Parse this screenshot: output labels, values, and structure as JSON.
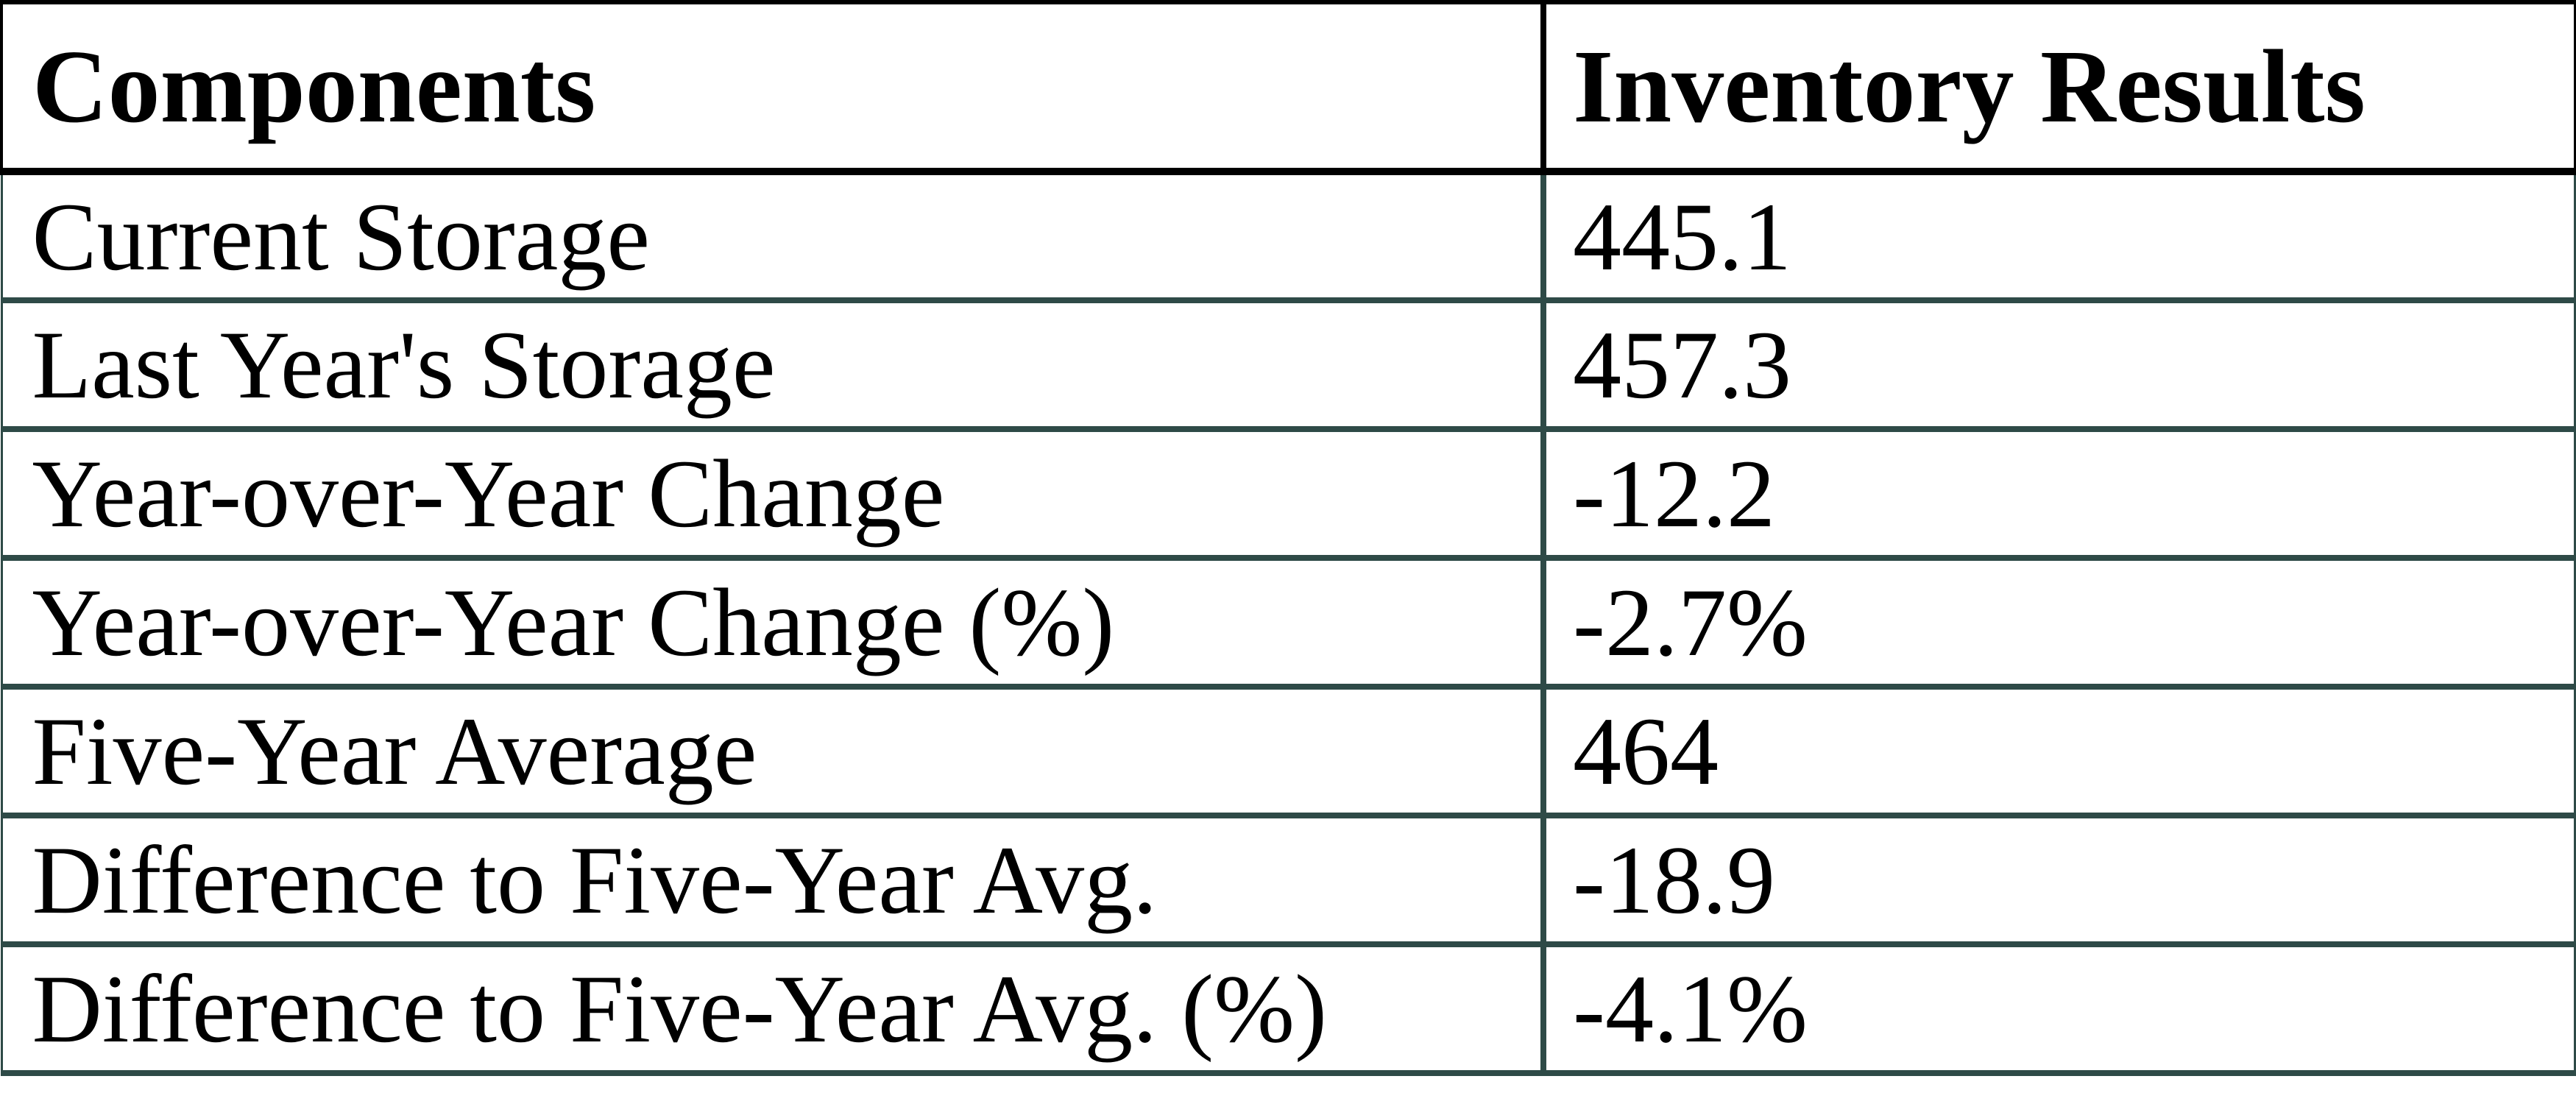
{
  "chart_data": {
    "type": "table",
    "title": "",
    "columns": [
      "Components",
      "Inventory Results"
    ],
    "rows": [
      {
        "component": "Current Storage",
        "result": "445.1"
      },
      {
        "component": "Last Year's Storage",
        "result": "457.3"
      },
      {
        "component": "Year-over-Year Change",
        "result": "-12.2"
      },
      {
        "component": "Year-over-Year Change (%)",
        "result": "-2.7%"
      },
      {
        "component": "Five-Year Average",
        "result": "464"
      },
      {
        "component": "Difference to Five-Year Avg.",
        "result": "-18.9"
      },
      {
        "component": "Difference to Five-Year Avg. (%)",
        "result": "-4.1%"
      }
    ],
    "numeric_values": {
      "current_storage": 445.1,
      "last_year_storage": 457.3,
      "yoy_change": -12.2,
      "yoy_change_pct": -2.7,
      "five_year_average": 464,
      "diff_to_five_year_avg": -18.9,
      "diff_to_five_year_avg_pct": -4.1
    },
    "colors": {
      "header_border": "#000000",
      "body_border": "#2e4a47",
      "text": "#000000",
      "background": "#ffffff"
    },
    "layout_hints": {
      "header_bold": true,
      "column_divider_position_pct": 60,
      "grid": "on"
    }
  }
}
